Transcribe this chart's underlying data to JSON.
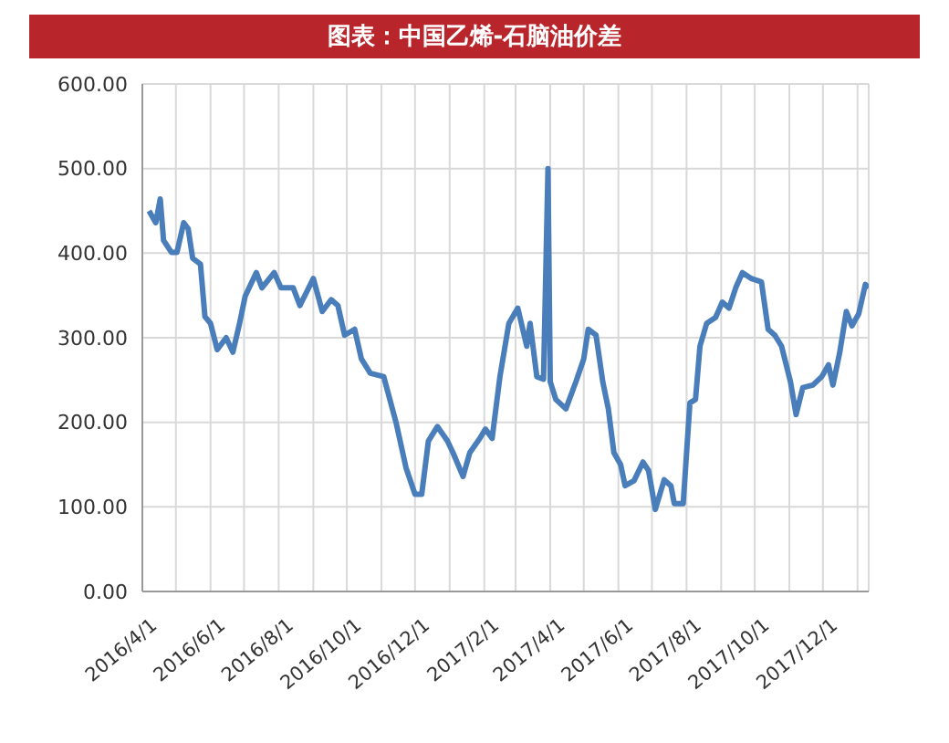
{
  "chart_data": {
    "type": "line",
    "title": "图表：中国乙烯-石脑油价差",
    "x": [
      "2016-04-07",
      "2016-04-13",
      "2016-04-17",
      "2016-04-20",
      "2016-04-27",
      "2016-05-02",
      "2016-05-08",
      "2016-05-12",
      "2016-05-16",
      "2016-05-23",
      "2016-05-27",
      "2016-06-01",
      "2016-06-07",
      "2016-06-15",
      "2016-06-21",
      "2016-06-27",
      "2016-07-02",
      "2016-07-12",
      "2016-07-17",
      "2016-07-28",
      "2016-08-03",
      "2016-08-14",
      "2016-08-20",
      "2016-09-01",
      "2016-09-09",
      "2016-09-17",
      "2016-09-23",
      "2016-09-29",
      "2016-10-08",
      "2016-10-14",
      "2016-10-22",
      "2016-11-03",
      "2016-11-14",
      "2016-11-23",
      "2016-12-01",
      "2016-12-07",
      "2016-12-13",
      "2016-12-21",
      "2016-12-30",
      "2017-01-04",
      "2017-01-13",
      "2017-01-19",
      "2017-01-28",
      "2017-02-02",
      "2017-02-08",
      "2017-02-15",
      "2017-02-23",
      "2017-03-03",
      "2017-03-11",
      "2017-03-14",
      "2017-03-20",
      "2017-03-26",
      "2017-03-30",
      "2017-04-01",
      "2017-04-06",
      "2017-04-15",
      "2017-04-24",
      "2017-05-01",
      "2017-05-05",
      "2017-05-12",
      "2017-05-18",
      "2017-05-23",
      "2017-05-28",
      "2017-06-03",
      "2017-06-07",
      "2017-06-15",
      "2017-06-23",
      "2017-06-28",
      "2017-07-04",
      "2017-07-12",
      "2017-07-18",
      "2017-07-21",
      "2017-07-29",
      "2017-08-04",
      "2017-08-09",
      "2017-08-13",
      "2017-08-19",
      "2017-08-27",
      "2017-09-02",
      "2017-09-08",
      "2017-09-14",
      "2017-09-20",
      "2017-09-28",
      "2017-10-07",
      "2017-10-13",
      "2017-10-19",
      "2017-10-25",
      "2017-11-02",
      "2017-11-07",
      "2017-11-13",
      "2017-11-22",
      "2017-11-30",
      "2017-12-06",
      "2017-12-10",
      "2017-12-16",
      "2017-12-22",
      "2017-12-27",
      "2018-01-02",
      "2018-01-08",
      "2018-01-11"
    ],
    "series": [
      {
        "color": "#4a7ebb",
        "values": [
          450,
          436,
          464,
          415,
          401,
          401,
          436,
          429,
          394,
          387,
          325,
          317,
          286,
          300,
          283,
          317,
          349,
          377,
          359,
          377,
          359,
          359,
          338,
          370,
          331,
          345,
          338,
          303,
          310,
          275,
          258,
          254,
          200,
          146,
          115,
          115,
          178,
          195,
          178,
          164,
          136,
          164,
          181,
          192,
          181,
          254,
          317,
          335,
          290,
          317,
          254,
          251,
          500,
          248,
          227,
          216,
          248,
          275,
          310,
          303,
          248,
          216,
          164,
          150,
          125,
          131,
          153,
          143,
          97,
          132,
          125,
          104,
          104,
          223,
          227,
          290,
          317,
          324,
          342,
          335,
          359,
          377,
          370,
          366,
          310,
          303,
          290,
          248,
          209,
          241,
          244,
          254,
          268,
          244,
          282,
          331,
          314,
          328,
          363,
          359
        ]
      }
    ],
    "xlim": [
      "2016-04-01",
      "2018-01-11"
    ],
    "xticks": [
      {
        "value": "2016-04-01",
        "label": "2016/4/1"
      },
      {
        "value": "2016-05-01",
        "label": null
      },
      {
        "value": "2016-06-01",
        "label": "2016/6/1"
      },
      {
        "value": "2016-07-01",
        "label": null
      },
      {
        "value": "2016-08-01",
        "label": "2016/8/1"
      },
      {
        "value": "2016-09-01",
        "label": null
      },
      {
        "value": "2016-10-01",
        "label": "2016/10/1"
      },
      {
        "value": "2016-11-01",
        "label": null
      },
      {
        "value": "2016-12-01",
        "label": "2016/12/1"
      },
      {
        "value": "2017-01-01",
        "label": null
      },
      {
        "value": "2017-02-01",
        "label": "2017/2/1"
      },
      {
        "value": "2017-03-01",
        "label": null
      },
      {
        "value": "2017-04-01",
        "label": "2017/4/1"
      },
      {
        "value": "2017-05-01",
        "label": null
      },
      {
        "value": "2017-06-01",
        "label": "2017/6/1"
      },
      {
        "value": "2017-07-01",
        "label": null
      },
      {
        "value": "2017-08-01",
        "label": "2017/8/1"
      },
      {
        "value": "2017-09-01",
        "label": null
      },
      {
        "value": "2017-10-01",
        "label": "2017/10/1"
      },
      {
        "value": "2017-11-01",
        "label": null
      },
      {
        "value": "2017-12-01",
        "label": "2017/12/1"
      },
      {
        "value": "2018-01-01",
        "label": null
      }
    ],
    "ylim": [
      0,
      600
    ],
    "yticks": [
      {
        "value": 0,
        "label": "0.00"
      },
      {
        "value": 100,
        "label": "100.00"
      },
      {
        "value": 200,
        "label": "200.00"
      },
      {
        "value": 300,
        "label": "300.00"
      },
      {
        "value": 400,
        "label": "400.00"
      },
      {
        "value": 500,
        "label": "500.00"
      },
      {
        "value": 600,
        "label": "600.00"
      }
    ],
    "grid": true,
    "marker": "none",
    "line_style": "solid"
  }
}
